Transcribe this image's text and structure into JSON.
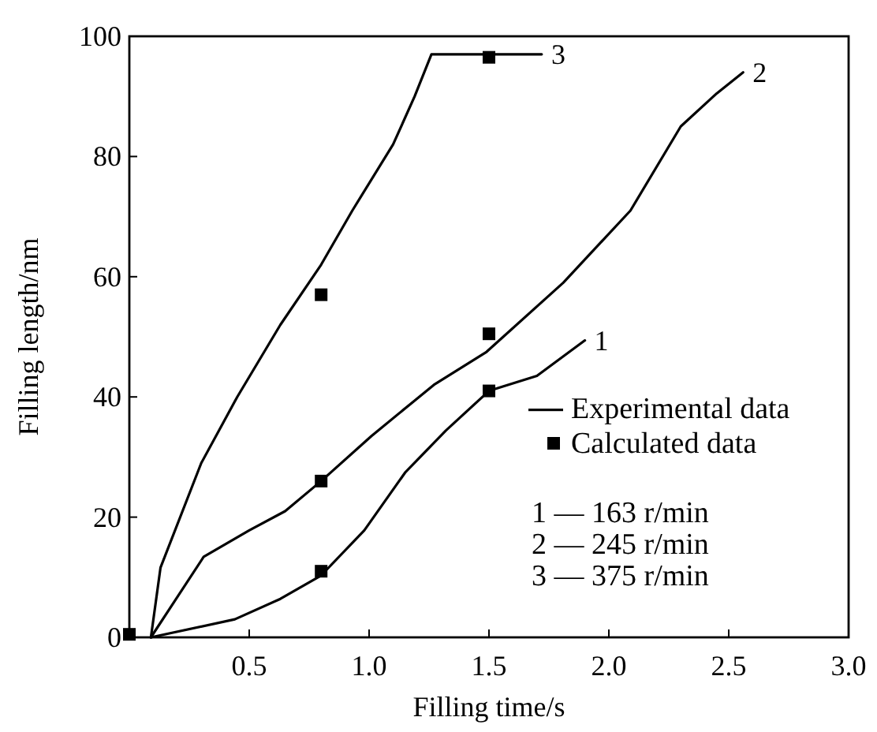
{
  "chart_data": {
    "type": "line",
    "xlabel": "Filling time/s",
    "ylabel": "Filling length/nm",
    "xlim": [
      0,
      3
    ],
    "ylim": [
      0,
      100
    ],
    "xticks": [
      {
        "value": 0,
        "label": null
      },
      0.5,
      {
        "value": 1,
        "label": "1.0"
      },
      1.5,
      {
        "value": 2,
        "label": "2.0"
      },
      2.5,
      {
        "value": 3,
        "label": "3.0"
      }
    ],
    "yticks": [
      0,
      20,
      40,
      60,
      80,
      100
    ],
    "grid": false,
    "legend": "bottom right",
    "line_style": "solid",
    "marker": "none",
    "series": [
      {
        "name": "1",
        "color": "#000000",
        "x": [
          0.09,
          0.44,
          0.63,
          0.8,
          0.98,
          1.15,
          1.32,
          1.5,
          1.7,
          1.9
        ],
        "values": [
          0,
          3,
          6.4,
          10.3,
          17.8,
          27.4,
          34.4,
          41,
          43.5,
          49.4
        ]
      },
      {
        "name": "2",
        "color": "#000000",
        "x": [
          0.09,
          0.31,
          0.5,
          0.65,
          0.8,
          1.01,
          1.27,
          1.49,
          1.81,
          2.09,
          2.3,
          2.45,
          2.56
        ],
        "values": [
          0,
          13.4,
          17.8,
          21,
          26,
          33.5,
          42,
          47.5,
          59,
          71,
          85,
          90.5,
          94
        ]
      },
      {
        "name": "3",
        "color": "#000000",
        "x": [
          0.09,
          0.13,
          0.3,
          0.45,
          0.63,
          0.8,
          0.93,
          1.1,
          1.19,
          1.26,
          1.72
        ],
        "values": [
          0,
          11.6,
          29,
          40,
          52,
          62,
          71,
          82,
          90,
          97,
          97
        ]
      },
      {
        "name": "Calculated data",
        "type": "scatter",
        "marker": "square",
        "color": "#000000",
        "x": [
          0,
          0.8,
          0.8,
          0.8,
          1.5,
          1.5,
          1.5
        ],
        "values": [
          0.5,
          11,
          26,
          57,
          41,
          50.5,
          96.5
        ]
      }
    ],
    "annotations": [
      "Experimental data",
      "1 — 163 r/min",
      "2 — 245 r/min",
      "3 — 375 r/min"
    ]
  }
}
